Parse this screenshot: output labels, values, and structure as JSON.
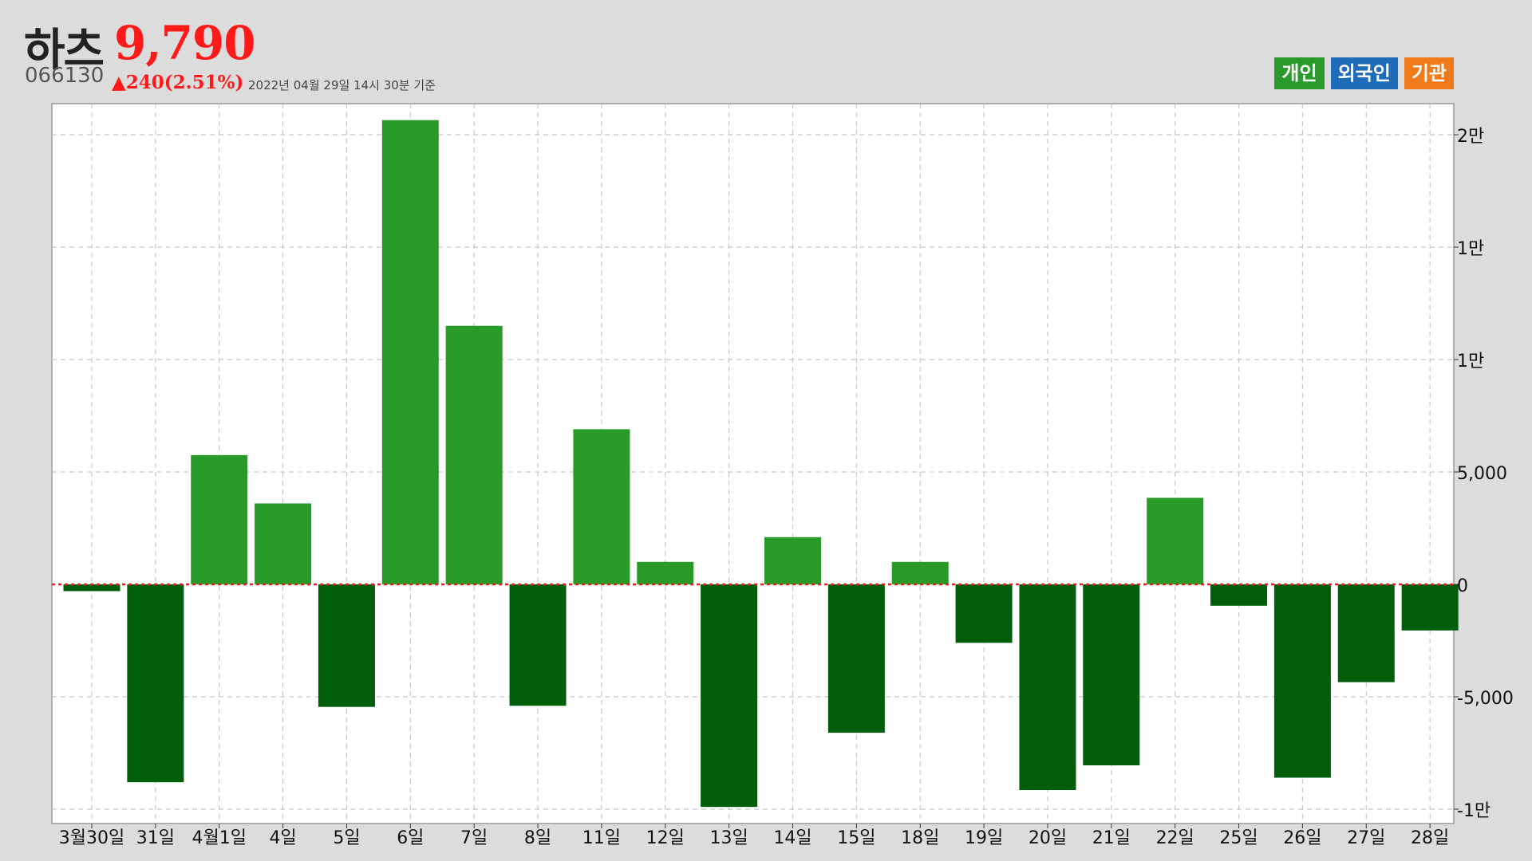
{
  "header": {
    "name": "하츠",
    "price": "9,790",
    "code": "066130",
    "change": "▲240(2.51%)",
    "timestamp": "2022년 04월 29일 14시 30분 기준"
  },
  "legend": [
    {
      "label": "개인",
      "color": "#2a9a2a"
    },
    {
      "label": "외국인",
      "color": "#1e6bb8"
    },
    {
      "label": "기관",
      "color": "#f07a1a"
    }
  ],
  "chart_data": {
    "type": "bar",
    "categories": [
      "3월30일",
      "31일",
      "4월1일",
      "4일",
      "5일",
      "6일",
      "7일",
      "8일",
      "11일",
      "12일",
      "13일",
      "14일",
      "15일",
      "18일",
      "19일",
      "20일",
      "21일",
      "22일",
      "25일",
      "26일",
      "27일",
      "28일"
    ],
    "series": [
      {
        "name": "개인",
        "values": [
          -300,
          -8800,
          5750,
          3600,
          -5450,
          20650,
          11500,
          -5400,
          6900,
          1000,
          -9900,
          2100,
          -6600,
          1000,
          -2600,
          -9150,
          -8050,
          3850,
          -950,
          -8600,
          -4350,
          -2050
        ]
      }
    ],
    "ylim": [
      -10500,
      20650
    ],
    "yticks": [
      {
        "value": 20000,
        "label": "2만"
      },
      {
        "value": 15000,
        "label": "1만"
      },
      {
        "value": 10000,
        "label": "1만"
      },
      {
        "value": 5000,
        "label": "5,000"
      },
      {
        "value": 0,
        "label": "0"
      },
      {
        "value": -5000,
        "label": "-5,000"
      },
      {
        "value": -10000,
        "label": "-1만"
      }
    ],
    "colors": {
      "positive": "#289a28",
      "negative": "#005e0a",
      "zero_line": "#e02020",
      "grid": "#c8c8c8"
    },
    "grid": true
  }
}
